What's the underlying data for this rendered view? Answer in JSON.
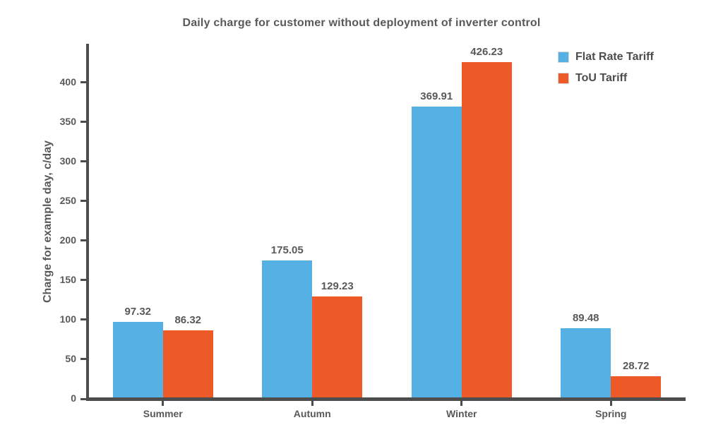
{
  "chart_data": {
    "type": "bar",
    "title": "Daily charge for customer without deployment of inverter control",
    "xlabel": "",
    "ylabel": "Charge for example day, c/day",
    "categories": [
      "Summer",
      "Autumn",
      "Winter",
      "Spring"
    ],
    "series": [
      {
        "name": "Flat Rate Tariff",
        "color": "#55B0E3",
        "values": [
          97.32,
          175.05,
          369.91,
          89.48
        ]
      },
      {
        "name": "ToU Tariff",
        "color": "#ED5A28",
        "values": [
          86.32,
          129.23,
          426.23,
          28.72
        ]
      }
    ],
    "yticks": [
      0,
      50,
      100,
      150,
      200,
      250,
      300,
      350,
      400
    ],
    "ylim": [
      0,
      449
    ],
    "grid": false,
    "legend_position": "top-right",
    "value_labels": true
  },
  "colors": {
    "axis": "#4D4D4D",
    "text": "#595959",
    "background": "#FFFFFF"
  }
}
